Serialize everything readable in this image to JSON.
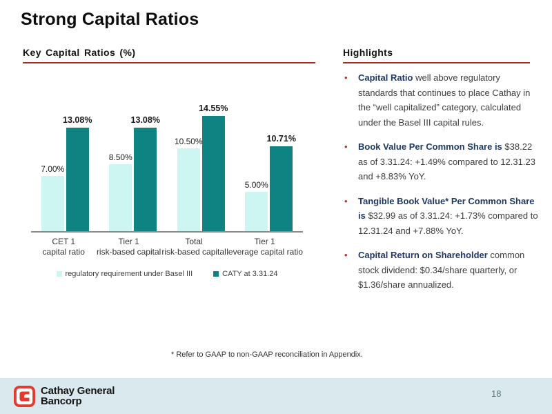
{
  "slide": {
    "title": "Strong Capital Ratios",
    "page_number": "18",
    "footnote": "* Refer to GAAP  to non-GAAP  reconciliation in Appendix.",
    "footer": {
      "logo_line1": "Cathay General",
      "logo_line2": "Bancorp"
    }
  },
  "left_panel": {
    "header": "Key  Capital  Ratios  (%)"
  },
  "highlights": {
    "header": "Highlights",
    "bullets": [
      {
        "lead": "Capital Ratio",
        "text": " well above regulatory standards that continues to place Cathay in the “well capitalized” category, calculated under the Basel III  capital rules."
      },
      {
        "lead": "Book Value Per Common Share is",
        "text": " $38.22 as of 3.31.24: +1.49% compared to 12.31.23 and +8.83% YoY."
      },
      {
        "lead": "Tangible Book Value* Per Common Share is",
        "text": " $32.99 as of 3.31.24: +1.73% compared to 12.31.24 and +7.88% YoY."
      },
      {
        "lead": "Capital Return on Shareholder",
        "text": " common stock dividend: $0.34/share quarterly,  or $1.36/share  annualized."
      }
    ]
  },
  "chart_data": {
    "type": "bar",
    "title": "Key Capital Ratios (%)",
    "categories": [
      [
        "CET 1",
        "capital ratio"
      ],
      [
        "Tier 1",
        "risk-based capital"
      ],
      [
        "Total",
        "risk-based capital"
      ],
      [
        "Tier 1",
        "leverage capital ratio"
      ]
    ],
    "series": [
      {
        "name": "regulatory requirement under Basel III",
        "color": "#cdf6f3",
        "values": [
          7.0,
          8.5,
          10.5,
          5.0
        ],
        "labels": [
          "7.00%",
          "8.50%",
          "10.50%",
          "5.00%"
        ],
        "label_bold": false
      },
      {
        "name": "CATY at 3.31.24",
        "color": "#0f8282",
        "values": [
          13.08,
          13.08,
          14.55,
          10.71
        ],
        "labels": [
          "13.08%",
          "13.08%",
          "14.55%",
          "10.71%"
        ],
        "label_bold": true
      }
    ],
    "ylim": [
      0,
      17
    ],
    "y_axis_visible": false,
    "grid": false,
    "legend_position": "bottom"
  },
  "colors": {
    "rule_red": "#ae2a24",
    "bar_light": "#cdf6f3",
    "bar_teal": "#0f8282",
    "lead_navy": "#1f3864",
    "bullet_red": "#a93a30",
    "footer_band": "#d9e9ed",
    "logo_red": "#e23a2e",
    "axis_gray": "#8a8a8a"
  }
}
